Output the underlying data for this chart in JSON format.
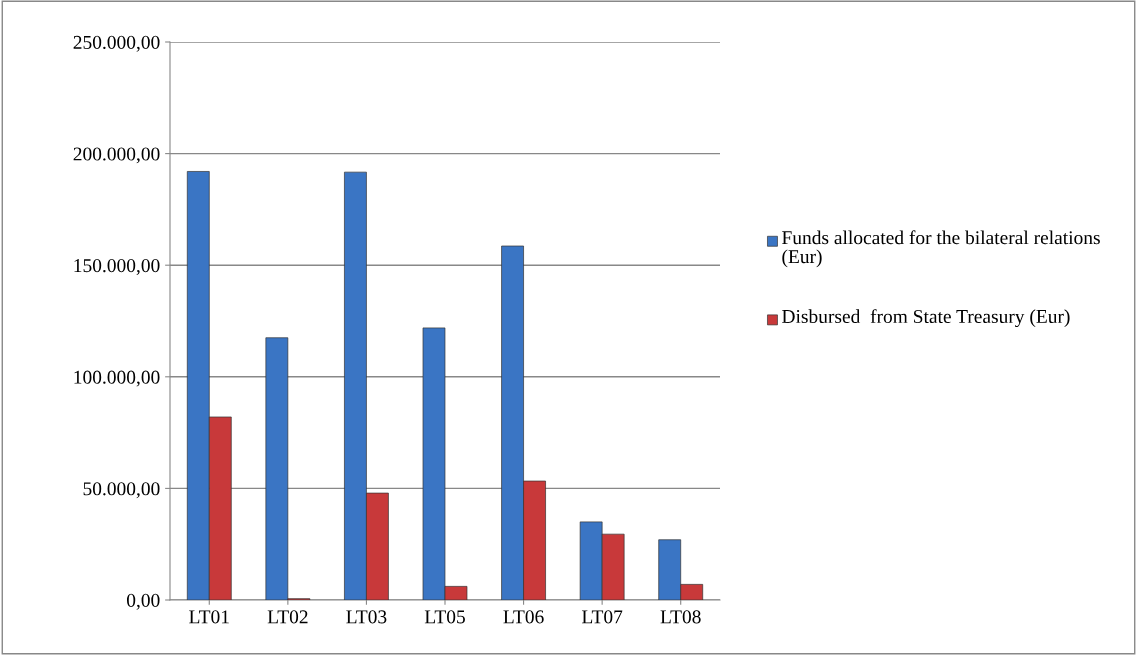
{
  "chart_data": {
    "type": "bar",
    "categories": [
      "LT01",
      "LT02",
      "LT03",
      "LT05",
      "LT06",
      "LT07",
      "LT08"
    ],
    "series": [
      {
        "name": "Funds allocated for the bilateral relations (Eur)",
        "color": "#3a75c4",
        "values": [
          192000,
          117500,
          191700,
          121900,
          158600,
          35000,
          27000
        ]
      },
      {
        "name": "Disbursed  from State Treasury (Eur)",
        "color": "#c8393a",
        "values": [
          82000,
          600,
          47900,
          6100,
          53300,
          29500,
          7000
        ]
      }
    ],
    "ylim": [
      0,
      250000
    ],
    "yticks": [
      {
        "value": 0,
        "label": "0,00"
      },
      {
        "value": 50000,
        "label": "50.000,00"
      },
      {
        "value": 100000,
        "label": "100.000,00"
      },
      {
        "value": 150000,
        "label": "150.000,00"
      },
      {
        "value": 200000,
        "label": "200.000,00"
      },
      {
        "value": 250000,
        "label": "250.000,00"
      }
    ],
    "grid": "y",
    "legend": "right"
  }
}
